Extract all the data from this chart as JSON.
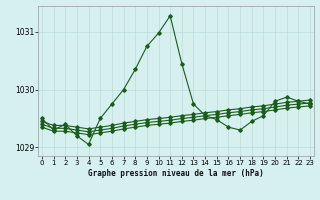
{
  "title": "Graphe pression niveau de la mer (hPa)",
  "bg_color": "#d6f0f0",
  "grid_color": "#b8ddd8",
  "line_color": "#1a5c1a",
  "ylim": [
    1028.85,
    1031.45
  ],
  "yticks": [
    1029,
    1030,
    1031
  ],
  "xlim": [
    -0.3,
    23.3
  ],
  "xticks": [
    0,
    1,
    2,
    3,
    4,
    5,
    6,
    7,
    8,
    9,
    10,
    11,
    12,
    13,
    14,
    15,
    16,
    17,
    18,
    19,
    20,
    21,
    22,
    23
  ],
  "series_main": [
    1029.5,
    1029.3,
    1029.4,
    1029.2,
    1029.05,
    1029.5,
    1029.75,
    1030.0,
    1030.35,
    1030.75,
    1030.98,
    1031.28,
    1030.45,
    1029.75,
    1029.55,
    1029.48,
    1029.35,
    1029.3,
    1029.45,
    1029.55,
    1029.8,
    1029.87,
    1029.8,
    1029.75
  ],
  "series_flat1": [
    1029.45,
    1029.38,
    1029.38,
    1029.35,
    1029.32,
    1029.35,
    1029.38,
    1029.42,
    1029.45,
    1029.48,
    1029.5,
    1029.52,
    1029.55,
    1029.57,
    1029.6,
    1029.62,
    1029.65,
    1029.67,
    1029.7,
    1029.72,
    1029.75,
    1029.78,
    1029.8,
    1029.82
  ],
  "series_flat2": [
    1029.35,
    1029.28,
    1029.28,
    1029.25,
    1029.22,
    1029.25,
    1029.28,
    1029.32,
    1029.35,
    1029.38,
    1029.4,
    1029.42,
    1029.45,
    1029.47,
    1029.5,
    1029.52,
    1029.55,
    1029.57,
    1029.6,
    1029.62,
    1029.65,
    1029.68,
    1029.7,
    1029.72
  ],
  "series_flat3": [
    1029.4,
    1029.33,
    1029.33,
    1029.3,
    1029.27,
    1029.3,
    1029.33,
    1029.37,
    1029.4,
    1029.43,
    1029.45,
    1029.47,
    1029.5,
    1029.52,
    1029.55,
    1029.57,
    1029.6,
    1029.62,
    1029.65,
    1029.67,
    1029.7,
    1029.73,
    1029.75,
    1029.77
  ]
}
